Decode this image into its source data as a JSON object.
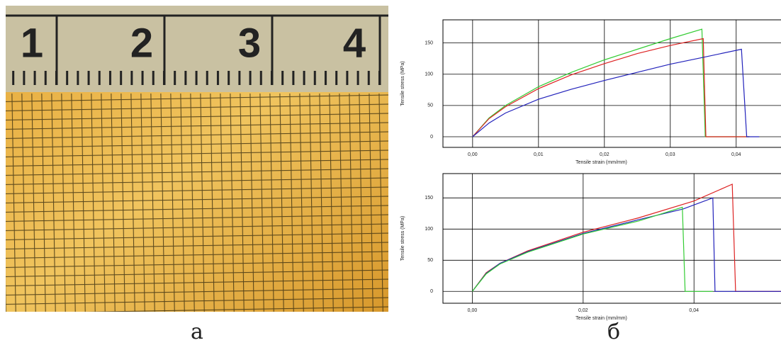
{
  "photo": {
    "ruler_numbers": [
      "1",
      "2",
      "3",
      "4"
    ]
  },
  "panel_labels": [
    "а",
    "б"
  ],
  "chart_data": [
    {
      "type": "line",
      "xlabel": "Tensile strain (mm/mm)",
      "ylabel": "Tensile stress (MPa)",
      "xlim": [
        -0.0045,
        0.0468
      ],
      "ylim": [
        -17,
        187
      ],
      "xticks": [
        {
          "value": 0,
          "label": "0,00"
        },
        {
          "value": 0.01,
          "label": "0,01"
        },
        {
          "value": 0.02,
          "label": "0,02"
        },
        {
          "value": 0.03,
          "label": "0,03"
        },
        {
          "value": 0.04,
          "label": "0,04"
        }
      ],
      "yticks": [
        0,
        50,
        100,
        150
      ],
      "grid": true,
      "series": [
        {
          "color": "#33cc33",
          "x": [
            0,
            0.0025,
            0.005,
            0.01,
            0.015,
            0.02,
            0.025,
            0.03,
            0.0348,
            0.0353,
            0.042
          ],
          "values": [
            0,
            30,
            50,
            80,
            103,
            123,
            140,
            157,
            172,
            0,
            0
          ]
        },
        {
          "color": "#dd2222",
          "x": [
            0,
            0.0025,
            0.005,
            0.01,
            0.015,
            0.02,
            0.025,
            0.03,
            0.035,
            0.0354,
            0.042
          ],
          "values": [
            0,
            29,
            48,
            77,
            99,
            117,
            133,
            146,
            157,
            0,
            0
          ]
        },
        {
          "color": "#2222bb",
          "x": [
            0,
            0.0025,
            0.005,
            0.01,
            0.015,
            0.02,
            0.025,
            0.03,
            0.035,
            0.0408,
            0.0416,
            0.0435
          ],
          "values": [
            0,
            22,
            38,
            60,
            76,
            90,
            103,
            116,
            127,
            140,
            0,
            0
          ]
        }
      ]
    },
    {
      "type": "line",
      "xlabel": "Tensile strain (mm/mm)",
      "ylabel": "Tensile stress (MPa)",
      "xlim": [
        -0.0053,
        0.0557
      ],
      "ylim": [
        -19,
        189
      ],
      "xticks": [
        {
          "value": 0,
          "label": "0,00"
        },
        {
          "value": 0.02,
          "label": "0,02"
        },
        {
          "value": 0.04,
          "label": "0,04"
        }
      ],
      "yticks": [
        0,
        50,
        100,
        150
      ],
      "grid": true,
      "series": [
        {
          "color": "#dd2222",
          "x": [
            0,
            0.0025,
            0.005,
            0.01,
            0.02,
            0.03,
            0.04,
            0.0469,
            0.0475,
            0.0557
          ],
          "values": [
            0,
            30,
            45,
            65,
            95,
            118,
            145,
            172,
            0,
            0
          ]
        },
        {
          "color": "#2222bb",
          "x": [
            0,
            0.0025,
            0.005,
            0.01,
            0.02,
            0.03,
            0.038,
            0.0434,
            0.0438,
            0.0557
          ],
          "values": [
            0,
            29,
            45,
            64,
            93,
            115,
            132,
            150,
            0,
            0
          ]
        },
        {
          "color": "#33cc33",
          "x": [
            0,
            0.0025,
            0.005,
            0.01,
            0.02,
            0.03,
            0.0379,
            0.0384,
            0.0434
          ],
          "values": [
            0,
            28,
            44,
            63,
            92,
            113,
            135,
            0,
            0
          ]
        }
      ]
    }
  ]
}
